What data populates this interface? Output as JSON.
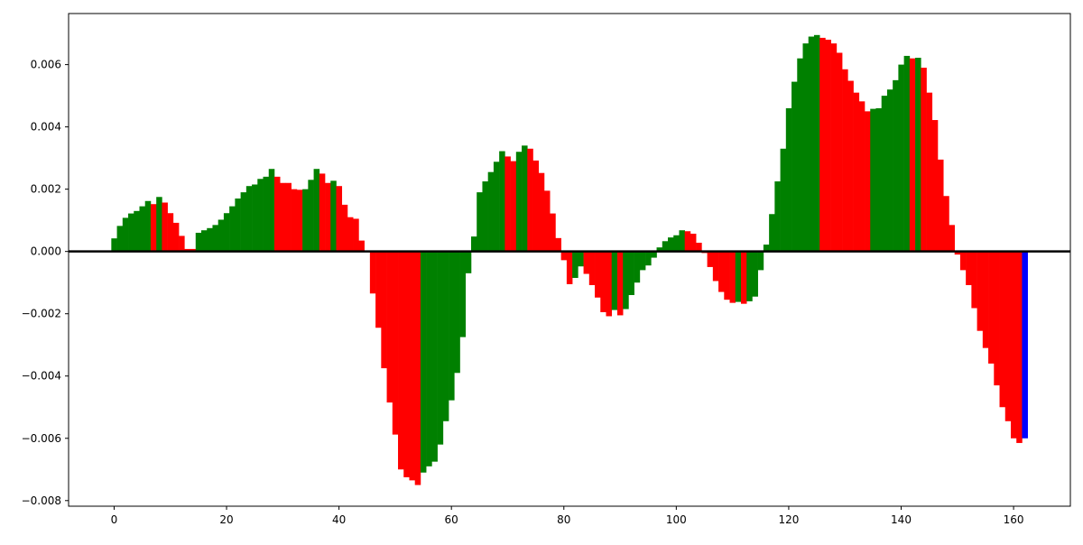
{
  "chart_data": {
    "type": "bar",
    "title": "",
    "xlabel": "",
    "ylabel": "",
    "xlim": [
      -8.1,
      170.1
    ],
    "ylim": [
      -0.00818,
      0.00764
    ],
    "x_ticks": [
      0,
      20,
      40,
      60,
      80,
      100,
      120,
      140,
      160
    ],
    "y_ticks": [
      -0.008,
      -0.006,
      -0.004,
      -0.002,
      0.0,
      0.002,
      0.004,
      0.006
    ],
    "y_tick_labels": [
      "−0.008",
      "−0.006",
      "−0.004",
      "−0.002",
      "0.000",
      "0.002",
      "0.004",
      "0.006"
    ],
    "x_tick_labels": [
      "0",
      "20",
      "40",
      "60",
      "80",
      "100",
      "120",
      "140",
      "160"
    ],
    "bar_width": 1.0,
    "zero_line": true,
    "grid": false,
    "colors": {
      "up": "#008000",
      "down": "#ff0000",
      "last": "#0000ff",
      "zero_line": "#000000"
    },
    "values": [
      0.00042,
      0.00082,
      0.00108,
      0.00122,
      0.0013,
      0.00145,
      0.00162,
      0.00152,
      0.00175,
      0.00157,
      0.00123,
      0.00092,
      0.0005,
      8e-05,
      8e-05,
      0.0006,
      0.00068,
      0.00075,
      0.00085,
      0.00102,
      0.00123,
      0.00145,
      0.0017,
      0.0019,
      0.0021,
      0.00215,
      0.00233,
      0.0024,
      0.00265,
      0.0024,
      0.0022,
      0.0022,
      0.002,
      0.00198,
      0.002,
      0.0023,
      0.00265,
      0.0025,
      0.0022,
      0.00227,
      0.0021,
      0.0015,
      0.0011,
      0.00105,
      0.00035,
      -2e-05,
      -0.00135,
      -0.00245,
      -0.00375,
      -0.00485,
      -0.00588,
      -0.007,
      -0.00725,
      -0.00735,
      -0.0075,
      -0.0071,
      -0.0069,
      -0.00675,
      -0.0062,
      -0.00545,
      -0.00478,
      -0.0039,
      -0.00275,
      -0.0007,
      0.00048,
      0.0019,
      0.00225,
      0.00255,
      0.00288,
      0.00322,
      0.00305,
      0.0029,
      0.0032,
      0.0034,
      0.0033,
      0.00292,
      0.00252,
      0.00195,
      0.00122,
      0.00043,
      -0.00028,
      -0.00105,
      -0.00085,
      -0.00048,
      -0.00072,
      -0.00108,
      -0.00148,
      -0.00195,
      -0.00208,
      -0.00188,
      -0.00205,
      -0.00185,
      -0.0014,
      -0.001,
      -0.0006,
      -0.00045,
      -0.0002,
      0.00013,
      0.00033,
      0.00045,
      0.00052,
      0.00068,
      0.00065,
      0.00057,
      0.00028,
      -5e-05,
      -0.0005,
      -0.00095,
      -0.0013,
      -0.00155,
      -0.00165,
      -0.00162,
      -0.00168,
      -0.0016,
      -0.00145,
      -0.0006,
      0.00022,
      0.0012,
      0.00225,
      0.0033,
      0.0046,
      0.00545,
      0.0062,
      0.00668,
      0.0069,
      0.00695,
      0.00686,
      0.0068,
      0.00668,
      0.00638,
      0.00585,
      0.00548,
      0.0051,
      0.00482,
      0.0045,
      0.00458,
      0.0046,
      0.005,
      0.0052,
      0.0055,
      0.006,
      0.00628,
      0.0062,
      0.00622,
      0.0059,
      0.0051,
      0.00422,
      0.00295,
      0.00178,
      0.00085,
      -0.0001,
      -0.0006,
      -0.00108,
      -0.00182,
      -0.00255,
      -0.0031,
      -0.0036,
      -0.0043,
      -0.005,
      -0.00545,
      -0.006,
      -0.00615,
      -0.006
    ]
  }
}
